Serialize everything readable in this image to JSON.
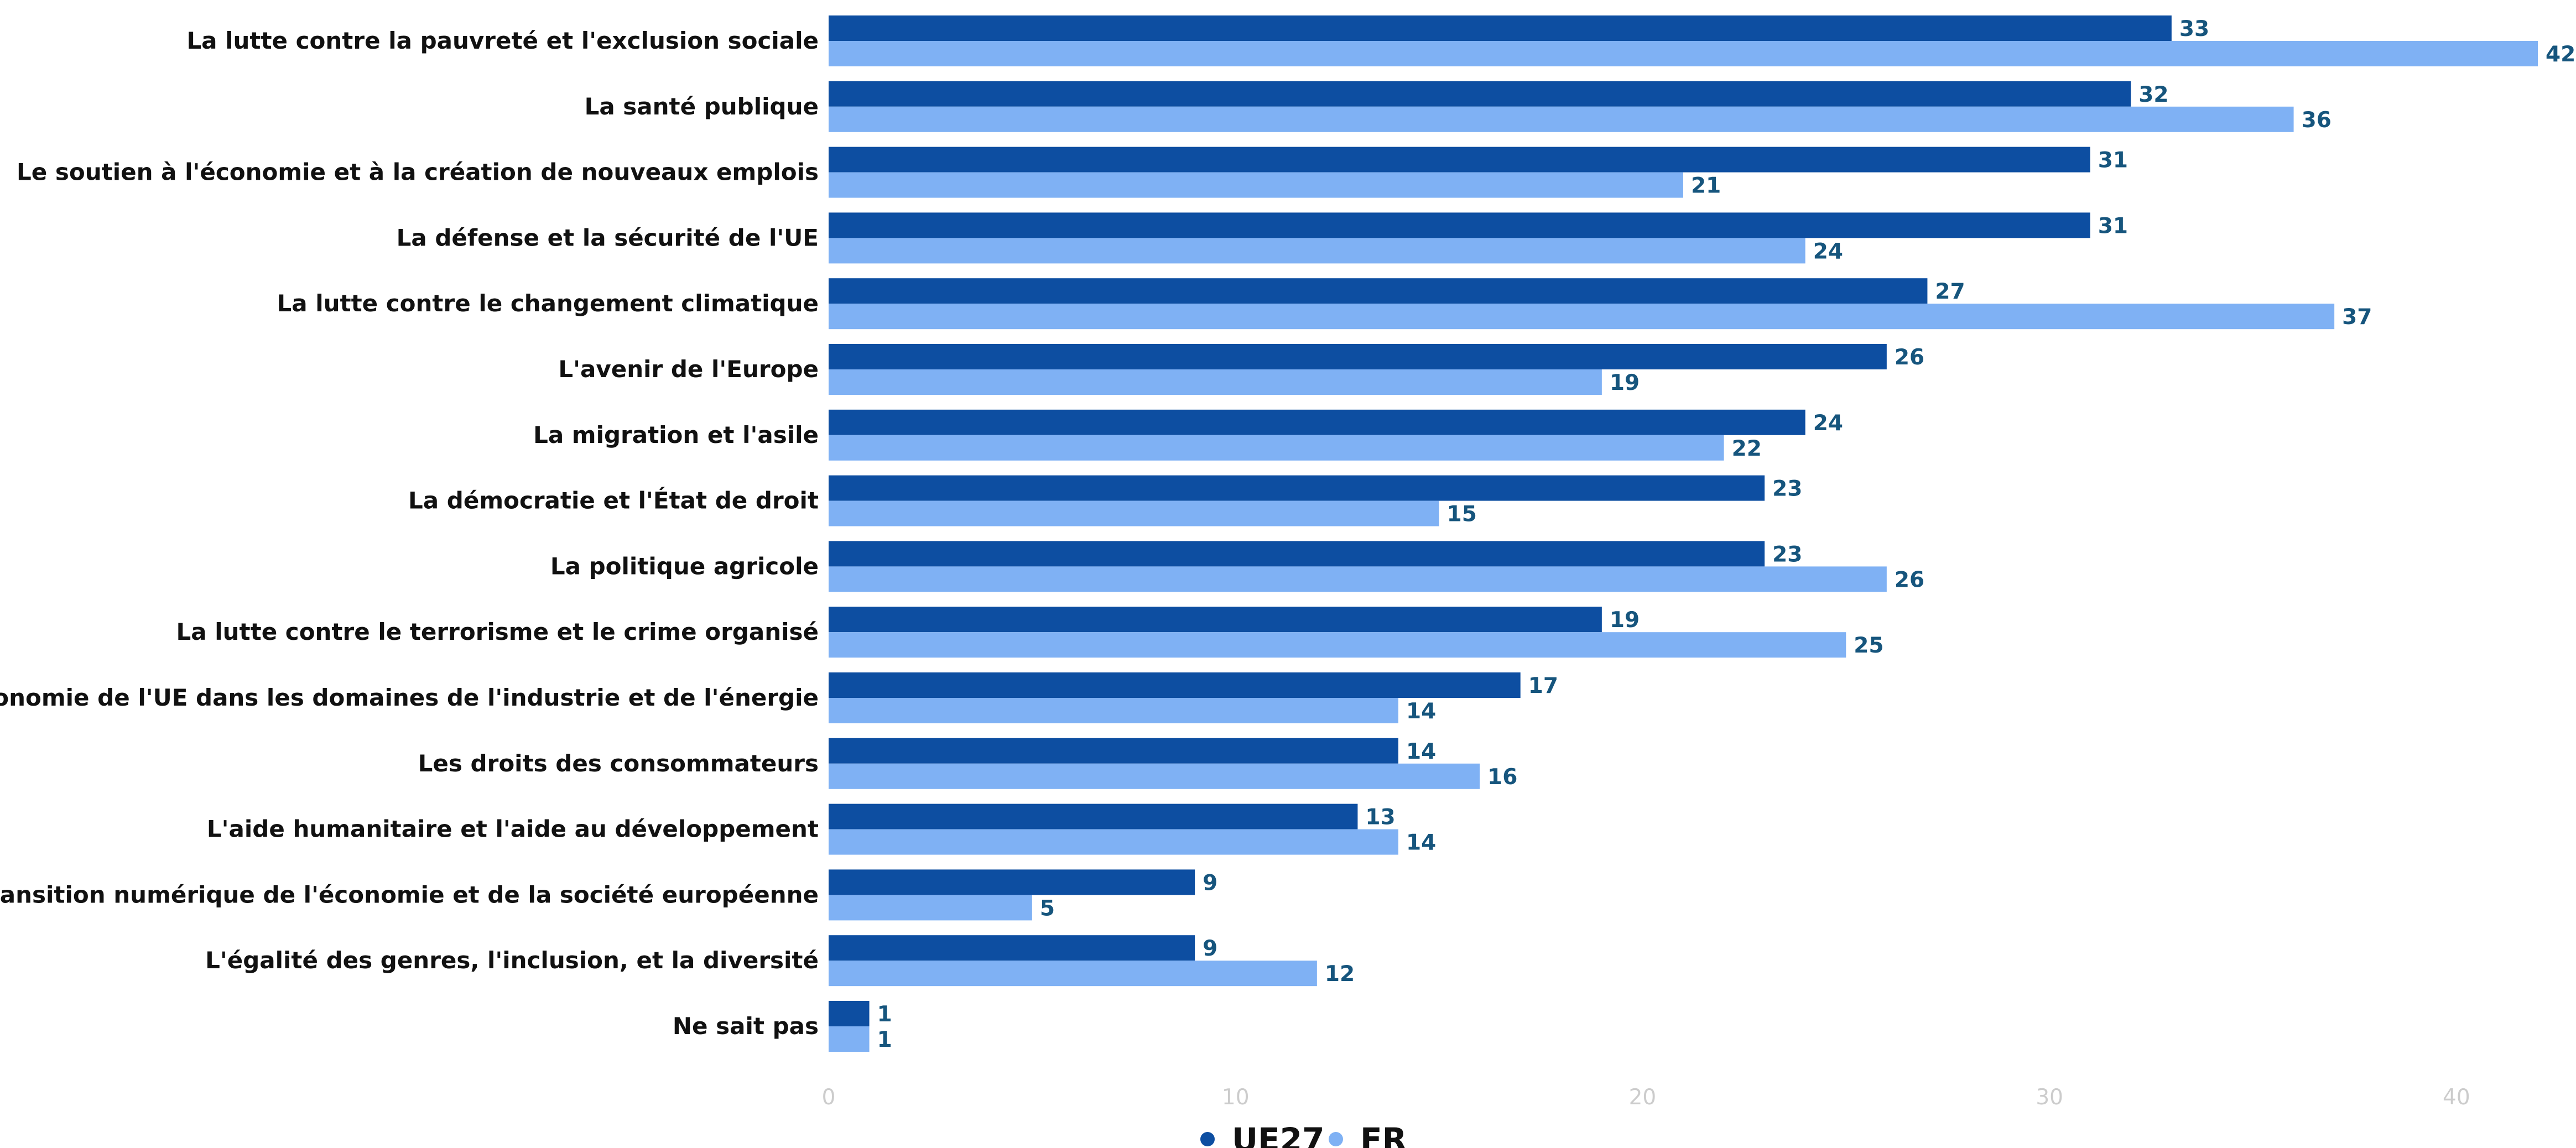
{
  "chart_data": {
    "type": "bar",
    "orientation": "horizontal",
    "title": "",
    "xlabel": "",
    "ylabel": "",
    "xlim": [
      0,
      42
    ],
    "x_ticks": [
      0,
      10,
      20,
      30,
      40
    ],
    "grid": false,
    "legend_position": "bottom-center",
    "categories": [
      "La lutte contre la pauvreté et l'exclusion sociale",
      "La santé publique",
      "Le soutien à l'économie et à la création de nouveaux emplois",
      "La défense et la sécurité de l'UE",
      "La lutte contre le changement climatique",
      "L'avenir de l'Europe",
      "La migration et l'asile",
      "La démocratie et l'État de droit",
      "La politique agricole",
      "La lutte contre le terrorisme et le crime organisé",
      "L'autonomie de l'UE dans les domaines de l'industrie et de l'énergie",
      "Les droits des consommateurs",
      "L'aide humanitaire et l'aide au développement",
      "La transition numérique de l'économie et de la société européenne",
      "L'égalité des genres, l'inclusion, et la diversité",
      "Ne sait pas"
    ],
    "series": [
      {
        "name": "UE27",
        "color": "#0d4ea1",
        "values": [
          33,
          32,
          31,
          31,
          27,
          26,
          24,
          23,
          23,
          19,
          17,
          14,
          13,
          9,
          9,
          1
        ]
      },
      {
        "name": "FR",
        "color": "#7fb1f4",
        "values": [
          42,
          36,
          21,
          24,
          37,
          19,
          22,
          15,
          26,
          25,
          14,
          16,
          14,
          5,
          12,
          1
        ]
      }
    ]
  }
}
